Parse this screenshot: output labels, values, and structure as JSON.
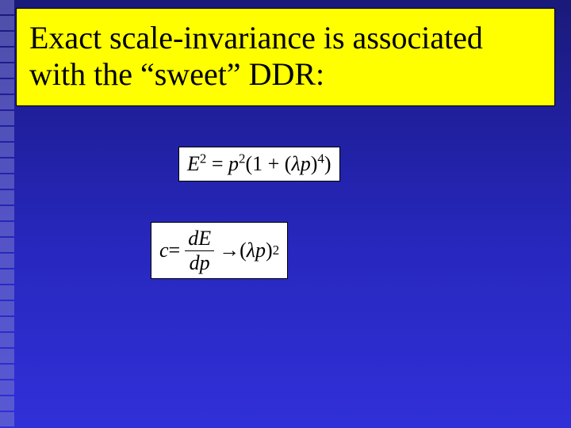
{
  "slide": {
    "background_gradient": [
      "#1a1a7a",
      "#2020a0",
      "#2828c0",
      "#3030d8"
    ],
    "title": {
      "text": "Exact scale-invariance is associated with the “sweet” DDR:",
      "background_color": "#ffff00",
      "text_color": "#000000",
      "font_size": 40
    },
    "equations": {
      "eq1": {
        "lhs": "E",
        "lhs_sup": "2",
        "eq": " = ",
        "rhs_a": "p",
        "rhs_a_sup": "2",
        "rhs_b_open": "(1 + (",
        "rhs_b_lp": "λp",
        "rhs_b_close": ")",
        "rhs_b_sup": "4",
        "rhs_b_end": ")",
        "background_color": "#ffffff",
        "font_size": 26
      },
      "eq2": {
        "lhs": "c",
        "eq": " = ",
        "frac_num": "dE",
        "frac_den": "dp",
        "arrow": " → ",
        "rhs_open": "(",
        "rhs_lp": "λp",
        "rhs_close": ")",
        "rhs_sup": "2",
        "background_color": "#ffffff",
        "font_size": 26
      }
    },
    "decoration": {
      "left_stripe_color": "#7a7ad0",
      "left_stripe_square_size": 18,
      "left_stripe_count": 27
    }
  }
}
